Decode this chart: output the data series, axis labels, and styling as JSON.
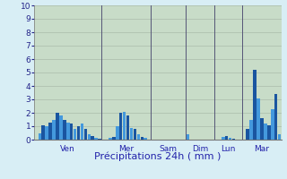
{
  "xlabel": "Précipitations 24h ( mm )",
  "ylim": [
    0,
    10
  ],
  "fig_background": "#d8eef5",
  "plot_background": "#c8dcc8",
  "bar_color_dark": "#1a55a0",
  "bar_color_light": "#4499dd",
  "yticks": [
    0,
    1,
    2,
    3,
    4,
    5,
    6,
    7,
    8,
    9,
    10
  ],
  "day_labels": [
    "Ven",
    "Mer",
    "Sam",
    "Dim",
    "Lun",
    "Mar"
  ],
  "tick_fontsize": 6.5,
  "label_fontsize": 8,
  "grid_color": "#aabcaa",
  "day_line_color": "#555577",
  "values": [
    0.0,
    0.5,
    1.1,
    1.0,
    1.3,
    1.5,
    2.0,
    1.8,
    1.5,
    1.3,
    1.2,
    0.8,
    1.0,
    1.2,
    0.8,
    0.4,
    0.3,
    0.15,
    0.1,
    0.0,
    0.0,
    0.15,
    0.2,
    1.0,
    2.0,
    2.1,
    1.8,
    0.9,
    0.8,
    0.4,
    0.2,
    0.15,
    0.0,
    0.0,
    0.0,
    0.0,
    0.0,
    0.0,
    0.0,
    0.0,
    0.0,
    0.0,
    0.0,
    0.4,
    0.0,
    0.0,
    0.0,
    0.0,
    0.0,
    0.0,
    0.0,
    0.0,
    0.0,
    0.2,
    0.3,
    0.15,
    0.1,
    0.0,
    0.0,
    0.0,
    0.8,
    1.5,
    5.2,
    3.1,
    1.6,
    1.2,
    1.1,
    2.3,
    3.4,
    0.4
  ],
  "day_boundaries": [
    0,
    19,
    33,
    43,
    51,
    59
  ],
  "n_bars": 70
}
